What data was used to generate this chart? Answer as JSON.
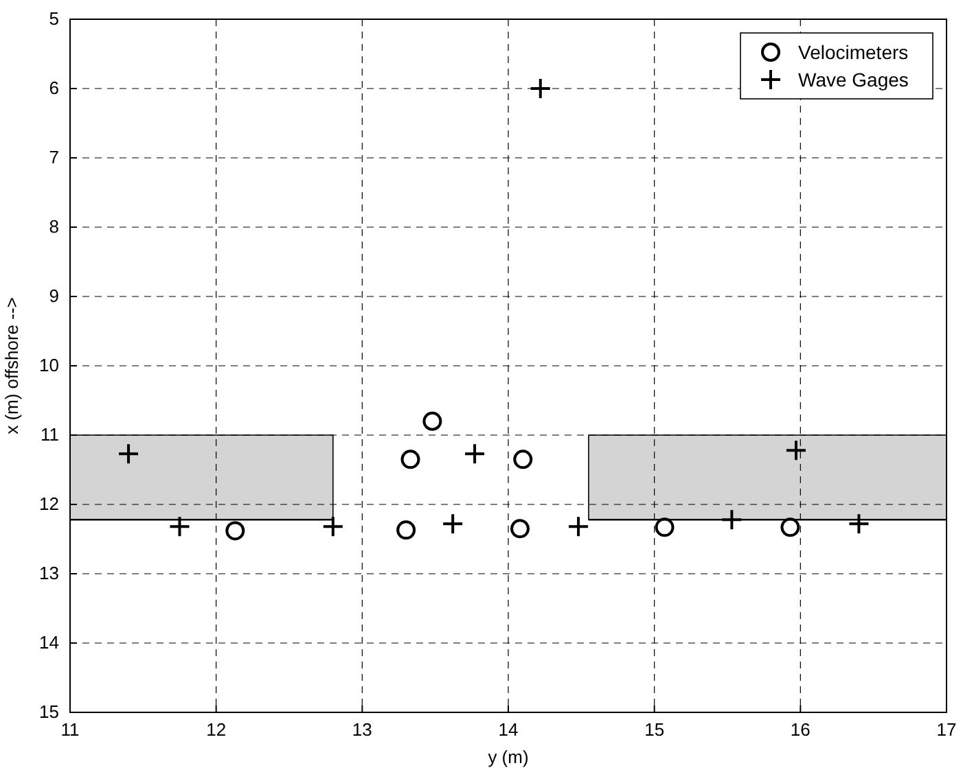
{
  "chart_data": {
    "type": "scatter",
    "xlabel": "y (m)",
    "ylabel": "x (m) offshore -->",
    "xlim": [
      11,
      17
    ],
    "xticks": [
      11,
      12,
      13,
      14,
      15,
      16,
      17
    ],
    "ylim": [
      15,
      5
    ],
    "yticks": [
      5,
      6,
      7,
      8,
      9,
      10,
      11,
      12,
      13,
      14,
      15
    ],
    "grid": true,
    "legend": "top right",
    "series": [
      {
        "type": "line",
        "color": "#000000",
        "marker": "none",
        "x": [
          11,
          12.8
        ],
        "values": [
          12.22,
          12.22
        ],
        "lower": [
          11,
          11
        ],
        "upper": [
          12.22,
          12.22
        ]
      },
      {
        "type": "line",
        "color": "#000000",
        "marker": "none",
        "x": [
          14.55,
          17
        ],
        "values": [
          12.22,
          12.22
        ],
        "lower": [
          11,
          11
        ],
        "upper": [
          12.22,
          12.22
        ]
      },
      {
        "name": "Velocimeters",
        "color": "#000000",
        "marker": "circle",
        "x": [
          12.13,
          13.3,
          13.33,
          13.48,
          14.08,
          14.1,
          15.07,
          15.93
        ],
        "values": [
          12.38,
          12.37,
          11.35,
          10.8,
          12.35,
          11.35,
          12.33,
          12.33
        ]
      },
      {
        "name": "Wave Gages",
        "color": "#000000",
        "marker": "cross",
        "x": [
          11.4,
          11.75,
          12.8,
          13.62,
          13.77,
          14.22,
          14.48,
          15.53,
          15.97,
          16.4
        ],
        "values": [
          11.27,
          12.32,
          12.32,
          12.28,
          11.27,
          6.0,
          12.32,
          12.22,
          11.22,
          12.28
        ]
      }
    ]
  }
}
